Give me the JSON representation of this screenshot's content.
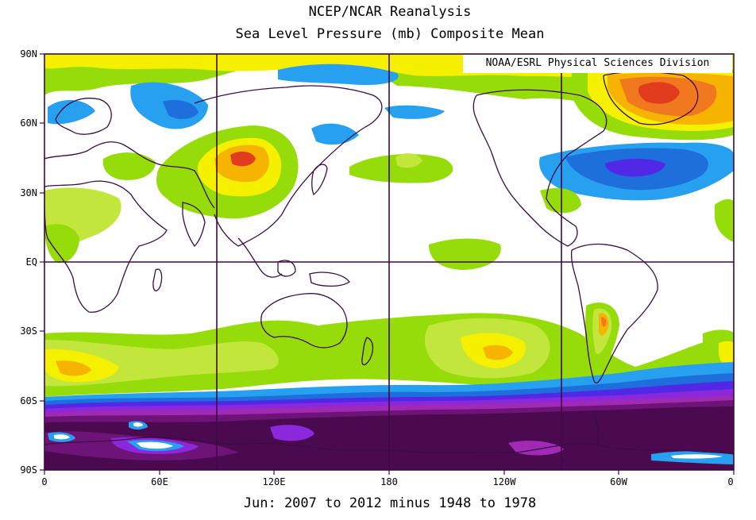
{
  "header": {
    "title": "NCEP/NCAR Reanalysis",
    "subtitle": "Sea Level Pressure (mb) Composite Mean"
  },
  "credit": "NOAA/ESRL Physical Sciences Division",
  "footer": "Jun: 2007 to 2012 minus 1948 to 1978",
  "chart_data": {
    "type": "heatmap",
    "title": "NCEP/NCAR Reanalysis",
    "subtitle": "Sea Level Pressure (mb) Composite Mean",
    "xlabel": "",
    "ylabel": "",
    "x_ticks": [
      "0",
      "60E",
      "120E",
      "180",
      "120W",
      "60W",
      "0"
    ],
    "y_ticks": [
      "90N",
      "60N",
      "30N",
      "EQ",
      "30S",
      "60S",
      "90S"
    ],
    "xlim": [
      0,
      360
    ],
    "ylim": [
      -90,
      90
    ],
    "gridlines_lon": [
      90,
      180,
      270
    ],
    "gridlines_lat": [
      0
    ],
    "colors": {
      "red": "#e13c1e",
      "orange": "#f0781e",
      "light_orange": "#f6b400",
      "yellow": "#f5f000",
      "yellow_green": "#c3e63c",
      "green": "#96dc0a",
      "cyan": "#28a0f0",
      "blue": "#1e6edc",
      "indigo": "#5028e6",
      "violet": "#8c28dc",
      "purple": "#a02ab4",
      "dark_purple": "#6e1478",
      "deep_purple": "#4b0a50",
      "coast": "#3c0a46"
    },
    "anomaly_features": [
      {
        "name": "greenland",
        "lon": 315,
        "lat": 75,
        "value": 4
      },
      {
        "name": "mongolia",
        "lon": 106,
        "lat": 44,
        "value": 3
      },
      {
        "name": "south-pacific",
        "lon": 237,
        "lat": -42,
        "value": 2.5
      },
      {
        "name": "chile",
        "lon": 290,
        "lat": -23,
        "value": 3
      },
      {
        "name": "south-atlantic",
        "lon": 8,
        "lat": -47,
        "value": 2
      },
      {
        "name": "north-atlantic",
        "lon": 315,
        "lat": 40,
        "value": -3.5
      },
      {
        "name": "siberia",
        "lon": 40,
        "lat": 64,
        "value": -2
      },
      {
        "name": "arctic",
        "lon": 150,
        "lat": 80,
        "value": -2
      },
      {
        "name": "southern-ocean",
        "lon": 180,
        "lat": -72,
        "value": -7
      }
    ]
  }
}
